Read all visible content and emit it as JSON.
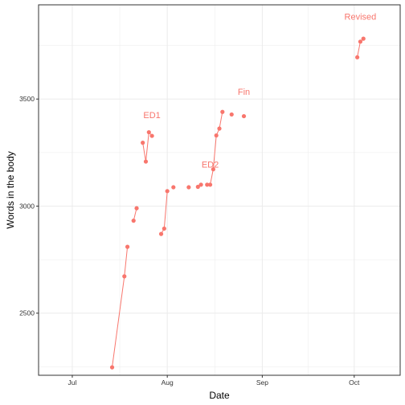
{
  "chart_data": {
    "type": "line",
    "title": "",
    "xlabel": "Date",
    "ylabel": "Words in the body",
    "x_is_date": true,
    "xlim": [
      "2017-06-20",
      "2017-10-16"
    ],
    "ylim": [
      2210,
      3940
    ],
    "x_ticks": [
      {
        "value": "2017-07-01",
        "label": "Jul"
      },
      {
        "value": "2017-08-01",
        "label": "Aug"
      },
      {
        "value": "2017-09-01",
        "label": "Sep"
      },
      {
        "value": "2017-10-01",
        "label": "Oct"
      }
    ],
    "y_ticks": [
      2500,
      3000,
      3500
    ],
    "grid": true,
    "legend": "none",
    "colors": {
      "series": "#F8766D",
      "grid": "#EBEBEB",
      "panel_border": "#333333",
      "tick_text": "#4D4D4D"
    },
    "segments": [
      [
        [
          "2017-07-14",
          2247
        ],
        [
          "2017-07-18",
          2672
        ],
        [
          "2017-07-19",
          2810
        ]
      ],
      [
        [
          "2017-07-21",
          2932
        ],
        [
          "2017-07-22",
          2990
        ]
      ],
      [
        [
          "2017-07-24",
          3296
        ],
        [
          "2017-07-25",
          3208
        ],
        [
          "2017-07-26",
          3345
        ],
        [
          "2017-07-27",
          3328
        ]
      ],
      [
        [
          "2017-07-30",
          2870
        ],
        [
          "2017-07-31",
          2895
        ],
        [
          "2017-08-01",
          3070
        ]
      ],
      [
        [
          "2017-08-03",
          3088
        ]
      ],
      [
        [
          "2017-08-08",
          3088
        ]
      ],
      [
        [
          "2017-08-11",
          3090
        ],
        [
          "2017-08-12",
          3100
        ]
      ],
      [
        [
          "2017-08-14",
          3100
        ],
        [
          "2017-08-15",
          3100
        ],
        [
          "2017-08-16",
          3172
        ],
        [
          "2017-08-17",
          3330
        ],
        [
          "2017-08-18",
          3362
        ],
        [
          "2017-08-19",
          3440
        ]
      ],
      [
        [
          "2017-08-22",
          3428
        ]
      ],
      [
        [
          "2017-08-26",
          3420
        ]
      ],
      [
        [
          "2017-10-02",
          3695
        ],
        [
          "2017-10-03",
          3768
        ],
        [
          "2017-10-04",
          3782
        ]
      ]
    ],
    "annotations": [
      {
        "text": "ED1",
        "x": "2017-07-27",
        "y": 3410
      },
      {
        "text": "ED2",
        "x": "2017-08-15",
        "y": 3180
      },
      {
        "text": "Fin",
        "x": "2017-08-26",
        "y": 3520
      },
      {
        "text": "Revised",
        "x": "2017-10-03",
        "y": 3870
      }
    ]
  }
}
